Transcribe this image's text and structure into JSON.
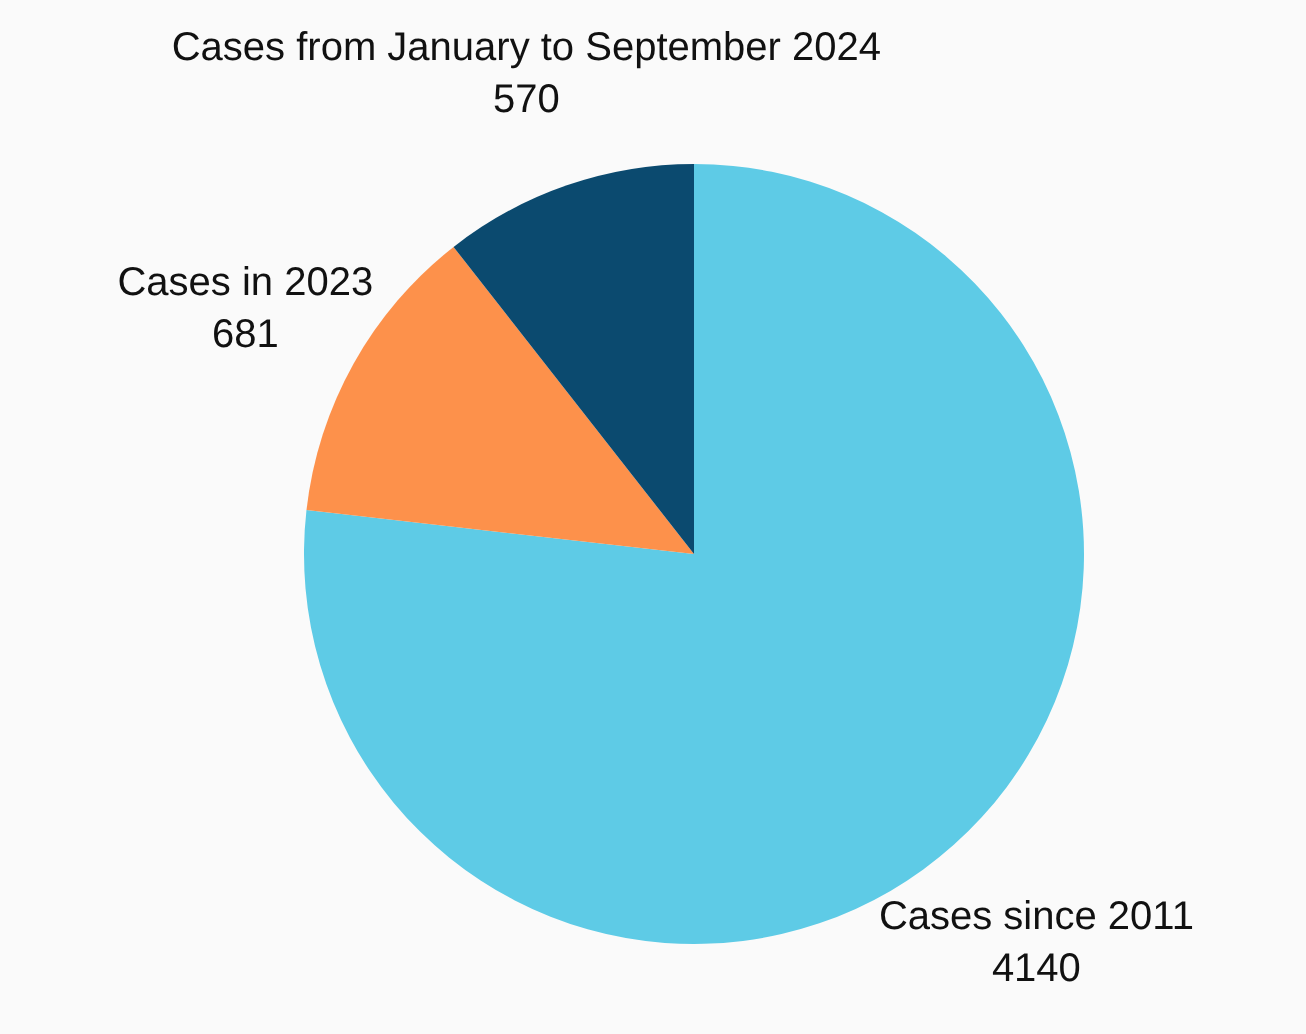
{
  "chart_data": {
    "type": "pie",
    "categories": [
      "Cases since 2011",
      "Cases in 2023",
      "Cases from January to September 2024"
    ],
    "values": [
      4140,
      681,
      570
    ],
    "colors": [
      "#5ecbe6",
      "#fd914b",
      "#0b4a6f"
    ],
    "data_labels": true,
    "legend": false
  }
}
